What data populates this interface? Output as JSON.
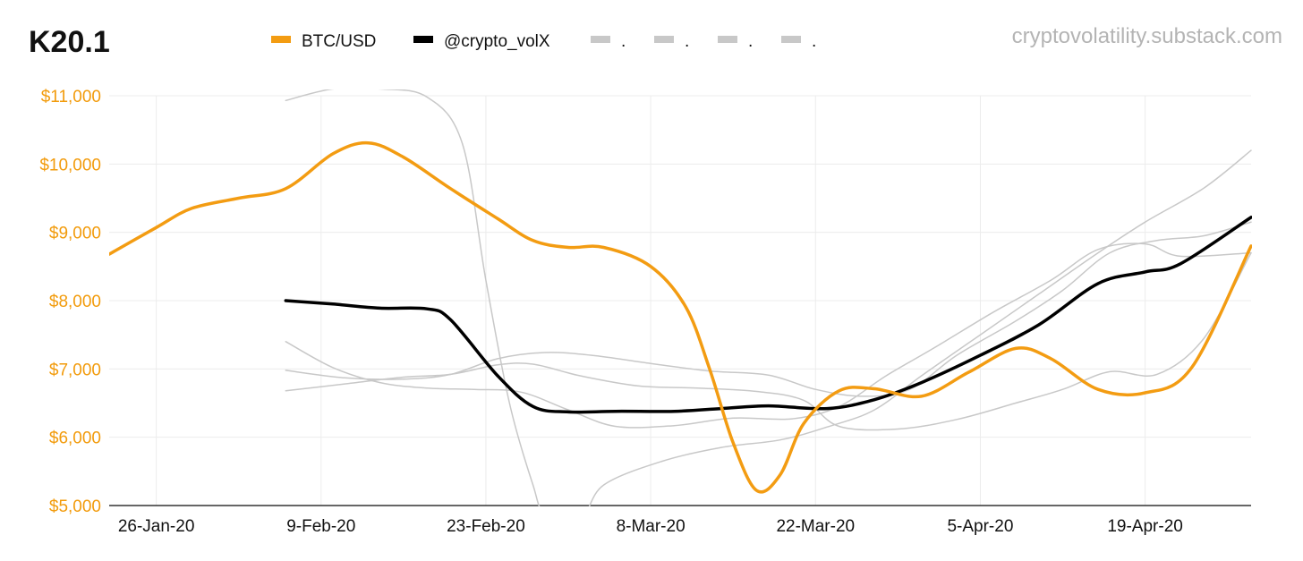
{
  "header": {
    "title": "K20.1",
    "source": "cryptovolatility.substack.com"
  },
  "chart_data": {
    "type": "line",
    "y_axis": {
      "min": 5000,
      "max": 11000,
      "ticks": [
        {
          "value": 5000,
          "label": "$5,000"
        },
        {
          "value": 6000,
          "label": "$6,000"
        },
        {
          "value": 7000,
          "label": "$7,000"
        },
        {
          "value": 8000,
          "label": "$8,000"
        },
        {
          "value": 9000,
          "label": "$9,000"
        },
        {
          "value": 10000,
          "label": "$10,000"
        },
        {
          "value": 11000,
          "label": "$11,000"
        }
      ]
    },
    "x_axis": {
      "min": "2020-01-22",
      "max": "2020-04-28",
      "ticks": [
        {
          "date": "2020-01-26",
          "label": "26-Jan-20"
        },
        {
          "date": "2020-02-09",
          "label": "9-Feb-20"
        },
        {
          "date": "2020-02-23",
          "label": "23-Feb-20"
        },
        {
          "date": "2020-03-08",
          "label": "8-Mar-20"
        },
        {
          "date": "2020-03-22",
          "label": "22-Mar-20"
        },
        {
          "date": "2020-04-05",
          "label": "5-Apr-20"
        },
        {
          "date": "2020-04-19",
          "label": "19-Apr-20"
        }
      ]
    },
    "grid": true,
    "legend_position": "top",
    "legend": [
      {
        "label": "BTC/USD",
        "color": "#f39c12"
      },
      {
        "label": "@crypto_volX",
        "color": "#000000"
      },
      {
        "label": ".",
        "color": "#c8c8c8"
      },
      {
        "label": ".",
        "color": "#c8c8c8"
      },
      {
        "label": ".",
        "color": "#c8c8c8"
      },
      {
        "label": ".",
        "color": "#c8c8c8"
      }
    ],
    "series": [
      {
        "name": "BTC/USD",
        "color": "#f39c12",
        "width": 3.5,
        "points": [
          [
            "2020-01-22",
            8680
          ],
          [
            "2020-01-26",
            9070
          ],
          [
            "2020-01-29",
            9350
          ],
          [
            "2020-02-02",
            9500
          ],
          [
            "2020-02-06",
            9640
          ],
          [
            "2020-02-10",
            10150
          ],
          [
            "2020-02-13",
            10310
          ],
          [
            "2020-02-16",
            10100
          ],
          [
            "2020-02-20",
            9640
          ],
          [
            "2020-02-24",
            9200
          ],
          [
            "2020-02-27",
            8880
          ],
          [
            "2020-03-01",
            8780
          ],
          [
            "2020-03-04",
            8780
          ],
          [
            "2020-03-08",
            8500
          ],
          [
            "2020-03-11",
            7900
          ],
          [
            "2020-03-13",
            7000
          ],
          [
            "2020-03-15",
            5920
          ],
          [
            "2020-03-17",
            5220
          ],
          [
            "2020-03-19",
            5450
          ],
          [
            "2020-03-21",
            6200
          ],
          [
            "2020-03-24",
            6680
          ],
          [
            "2020-03-27",
            6710
          ],
          [
            "2020-03-31",
            6600
          ],
          [
            "2020-04-04",
            6950
          ],
          [
            "2020-04-08",
            7300
          ],
          [
            "2020-04-11",
            7150
          ],
          [
            "2020-04-15",
            6700
          ],
          [
            "2020-04-19",
            6650
          ],
          [
            "2020-04-23",
            7030
          ],
          [
            "2020-04-28",
            8800
          ]
        ]
      },
      {
        "name": "@crypto_volX",
        "color": "#000000",
        "width": 3.5,
        "points": [
          [
            "2020-02-06",
            8000
          ],
          [
            "2020-02-10",
            7950
          ],
          [
            "2020-02-14",
            7890
          ],
          [
            "2020-02-18",
            7880
          ],
          [
            "2020-02-20",
            7720
          ],
          [
            "2020-02-24",
            6900
          ],
          [
            "2020-02-27",
            6450
          ],
          [
            "2020-03-01",
            6370
          ],
          [
            "2020-03-05",
            6380
          ],
          [
            "2020-03-10",
            6380
          ],
          [
            "2020-03-14",
            6420
          ],
          [
            "2020-03-18",
            6460
          ],
          [
            "2020-03-23",
            6420
          ],
          [
            "2020-03-27",
            6550
          ],
          [
            "2020-03-31",
            6800
          ],
          [
            "2020-04-05",
            7200
          ],
          [
            "2020-04-10",
            7650
          ],
          [
            "2020-04-15",
            8250
          ],
          [
            "2020-04-19",
            8420
          ],
          [
            "2020-04-22",
            8540
          ],
          [
            "2020-04-28",
            9220
          ]
        ]
      },
      {
        "name": "",
        "color": "#c8c8c8",
        "width": 1.5,
        "points": [
          [
            "2020-02-06",
            10930
          ],
          [
            "2020-02-10",
            11100
          ],
          [
            "2020-02-14",
            11100
          ],
          [
            "2020-02-18",
            10980
          ],
          [
            "2020-02-21",
            10300
          ],
          [
            "2020-02-23",
            8300
          ],
          [
            "2020-02-25",
            6500
          ],
          [
            "2020-02-27",
            5300
          ],
          [
            "2020-02-28",
            4900
          ],
          [
            "2020-03-02",
            4800
          ],
          [
            "2020-03-04",
            5300
          ],
          [
            "2020-03-09",
            5650
          ],
          [
            "2020-03-14",
            5850
          ],
          [
            "2020-03-19",
            5960
          ],
          [
            "2020-03-23",
            6150
          ],
          [
            "2020-03-27",
            6400
          ],
          [
            "2020-03-31",
            6900
          ],
          [
            "2020-04-05",
            7500
          ],
          [
            "2020-04-10",
            8100
          ],
          [
            "2020-04-15",
            8700
          ],
          [
            "2020-04-19",
            9150
          ],
          [
            "2020-04-24",
            9650
          ],
          [
            "2020-04-28",
            10200
          ]
        ]
      },
      {
        "name": "",
        "color": "#c8c8c8",
        "width": 1.5,
        "points": [
          [
            "2020-02-06",
            7400
          ],
          [
            "2020-02-10",
            7020
          ],
          [
            "2020-02-14",
            6800
          ],
          [
            "2020-02-18",
            6720
          ],
          [
            "2020-02-22",
            6700
          ],
          [
            "2020-02-26",
            6660
          ],
          [
            "2020-03-01",
            6400
          ],
          [
            "2020-03-05",
            6160
          ],
          [
            "2020-03-10",
            6170
          ],
          [
            "2020-03-15",
            6280
          ],
          [
            "2020-03-20",
            6270
          ],
          [
            "2020-03-24",
            6450
          ],
          [
            "2020-03-28",
            6900
          ],
          [
            "2020-04-01",
            7300
          ],
          [
            "2020-04-06",
            7820
          ],
          [
            "2020-04-11",
            8300
          ],
          [
            "2020-04-15",
            8750
          ],
          [
            "2020-04-19",
            8830
          ],
          [
            "2020-04-22",
            8650
          ],
          [
            "2020-04-28",
            8700
          ]
        ]
      },
      {
        "name": "",
        "color": "#c8c8c8",
        "width": 1.5,
        "points": [
          [
            "2020-02-06",
            6980
          ],
          [
            "2020-02-11",
            6870
          ],
          [
            "2020-02-16",
            6850
          ],
          [
            "2020-02-20",
            6920
          ],
          [
            "2020-02-24",
            7150
          ],
          [
            "2020-02-28",
            7240
          ],
          [
            "2020-03-03",
            7200
          ],
          [
            "2020-03-08",
            7080
          ],
          [
            "2020-03-13",
            6970
          ],
          [
            "2020-03-18",
            6910
          ],
          [
            "2020-03-22",
            6700
          ],
          [
            "2020-03-26",
            6600
          ],
          [
            "2020-03-30",
            6700
          ],
          [
            "2020-04-03",
            7200
          ],
          [
            "2020-04-08",
            7700
          ],
          [
            "2020-04-12",
            8150
          ],
          [
            "2020-04-16",
            8700
          ],
          [
            "2020-04-20",
            8880
          ],
          [
            "2020-04-24",
            8950
          ],
          [
            "2020-04-28",
            9150
          ]
        ]
      },
      {
        "name": "",
        "color": "#c8c8c8",
        "width": 1.5,
        "points": [
          [
            "2020-02-06",
            6680
          ],
          [
            "2020-02-11",
            6780
          ],
          [
            "2020-02-16",
            6880
          ],
          [
            "2020-02-20",
            6920
          ],
          [
            "2020-02-24",
            7060
          ],
          [
            "2020-02-27",
            7070
          ],
          [
            "2020-03-02",
            6900
          ],
          [
            "2020-03-07",
            6750
          ],
          [
            "2020-03-12",
            6720
          ],
          [
            "2020-03-17",
            6670
          ],
          [
            "2020-03-21",
            6540
          ],
          [
            "2020-03-24",
            6160
          ],
          [
            "2020-03-29",
            6120
          ],
          [
            "2020-04-03",
            6260
          ],
          [
            "2020-04-08",
            6500
          ],
          [
            "2020-04-12",
            6700
          ],
          [
            "2020-04-16",
            6960
          ],
          [
            "2020-04-20",
            6920
          ],
          [
            "2020-04-24",
            7450
          ],
          [
            "2020-04-28",
            8700
          ]
        ]
      }
    ]
  }
}
